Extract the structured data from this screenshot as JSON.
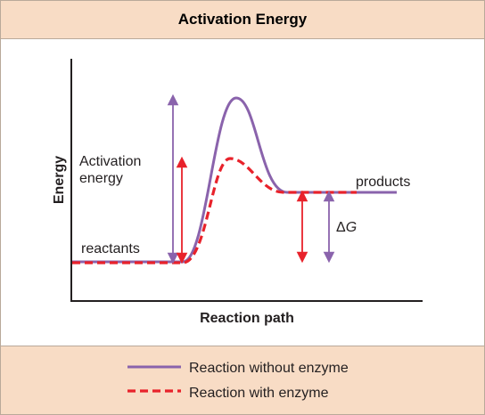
{
  "title": "Activation Energy",
  "labels": {
    "y_axis": "Energy",
    "x_axis": "Reaction path",
    "activation_line1": "Activation",
    "activation_line2": "energy",
    "reactants": "reactants",
    "products": "products",
    "delta_g_symbol": "Δ",
    "delta_g_var": "G"
  },
  "legend": [
    {
      "label": "Reaction without enzyme",
      "color": "#8a63ac",
      "style": "solid"
    },
    {
      "label": "Reaction with enzyme",
      "color": "#e8222b",
      "style": "dashed"
    }
  ],
  "colors": {
    "without_enzyme": "#8a63ac",
    "with_enzyme": "#e8222b",
    "axis": "#231f20"
  }
}
